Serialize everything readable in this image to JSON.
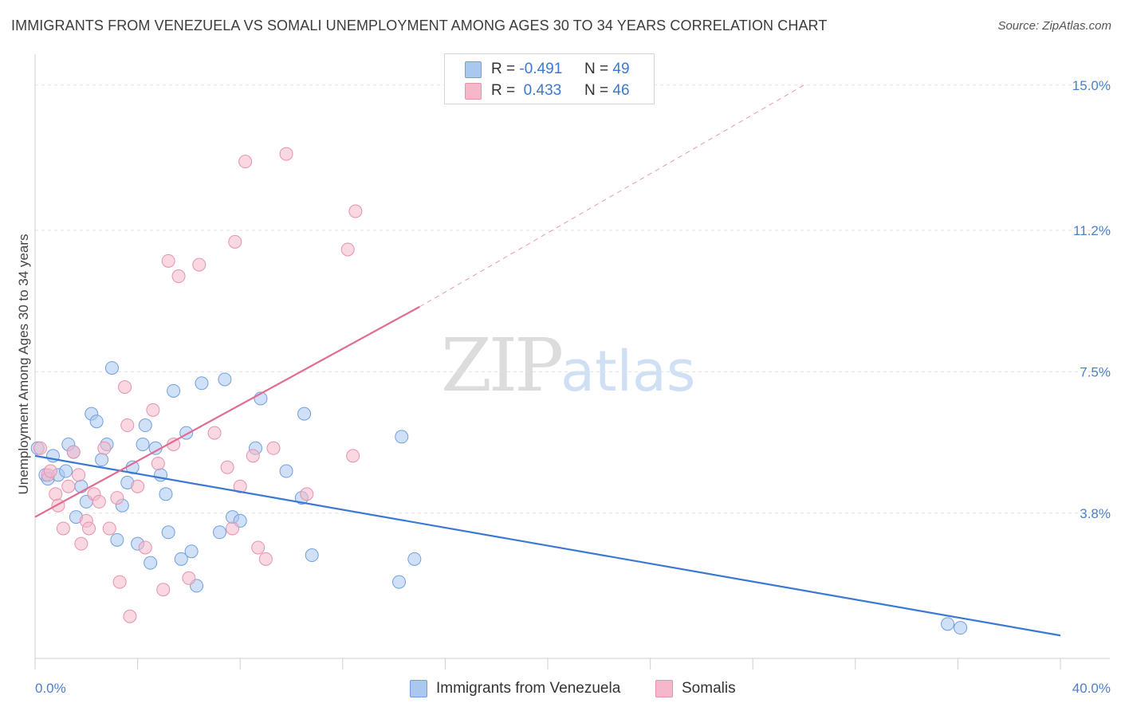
{
  "title": "IMMIGRANTS FROM VENEZUELA VS SOMALI UNEMPLOYMENT AMONG AGES 30 TO 34 YEARS CORRELATION CHART",
  "source": "Source: ZipAtlas.com",
  "watermark": {
    "zip": "ZIP",
    "atlas": "atlas"
  },
  "legend": {
    "rows": [
      {
        "r_label": "R =",
        "r_value": "-0.491",
        "n_label": "N =",
        "n_value": "49",
        "color": "#a9c8f0"
      },
      {
        "r_label": "R =",
        "r_value": " 0.433",
        "n_label": "N =",
        "n_value": "46",
        "color": "#f5b8cb"
      }
    ]
  },
  "bottom_legend": [
    {
      "label": "Immigrants from Venezuela",
      "color": "#a9c8f0"
    },
    {
      "label": "Somalis",
      "color": "#f5b8cb"
    }
  ],
  "chart_data": {
    "type": "scatter",
    "title": "IMMIGRANTS FROM VENEZUELA VS SOMALI UNEMPLOYMENT AMONG AGES 30 TO 34 YEARS CORRELATION CHART",
    "xlabel": "",
    "ylabel": "Unemployment Among Ages 30 to 34 years",
    "xlim": [
      0,
      40
    ],
    "ylim": [
      0,
      15.6
    ],
    "x_tick_labels": [
      "0.0%",
      "40.0%"
    ],
    "y_ticks": [
      3.8,
      7.5,
      11.2,
      15.0
    ],
    "y_tick_labels": [
      "3.8%",
      "7.5%",
      "11.2%",
      "15.0%"
    ],
    "grid": true,
    "legend_placement": "top-center",
    "series": [
      {
        "name": "Immigrants from Venezuela",
        "color": "#a9c8f0",
        "stroke": "#6f9fe0",
        "line_color": "#3a78d2",
        "trend": {
          "x": [
            0,
            40
          ],
          "y": [
            5.3,
            0.6
          ]
        },
        "points": [
          [
            0.1,
            5.5
          ],
          [
            0.4,
            4.8
          ],
          [
            0.5,
            4.7
          ],
          [
            0.7,
            5.3
          ],
          [
            0.9,
            4.8
          ],
          [
            1.2,
            4.9
          ],
          [
            1.3,
            5.6
          ],
          [
            1.5,
            5.4
          ],
          [
            1.6,
            3.7
          ],
          [
            1.8,
            4.5
          ],
          [
            2.0,
            4.1
          ],
          [
            2.2,
            6.4
          ],
          [
            2.4,
            6.2
          ],
          [
            2.6,
            5.2
          ],
          [
            2.8,
            5.6
          ],
          [
            3.0,
            7.6
          ],
          [
            3.2,
            3.1
          ],
          [
            3.4,
            4.0
          ],
          [
            3.6,
            4.6
          ],
          [
            3.8,
            5.0
          ],
          [
            4.0,
            3.0
          ],
          [
            4.2,
            5.6
          ],
          [
            4.3,
            6.1
          ],
          [
            4.5,
            2.5
          ],
          [
            4.7,
            5.5
          ],
          [
            4.9,
            4.8
          ],
          [
            5.1,
            4.3
          ],
          [
            5.2,
            3.3
          ],
          [
            5.4,
            7.0
          ],
          [
            5.7,
            2.6
          ],
          [
            5.9,
            5.9
          ],
          [
            6.1,
            2.8
          ],
          [
            6.3,
            1.9
          ],
          [
            6.5,
            7.2
          ],
          [
            7.2,
            3.3
          ],
          [
            7.4,
            7.3
          ],
          [
            7.7,
            3.7
          ],
          [
            8.0,
            3.6
          ],
          [
            8.6,
            5.5
          ],
          [
            8.8,
            6.8
          ],
          [
            9.8,
            4.9
          ],
          [
            10.4,
            4.2
          ],
          [
            10.5,
            6.4
          ],
          [
            10.8,
            2.7
          ],
          [
            14.2,
            2.0
          ],
          [
            14.3,
            5.8
          ],
          [
            14.8,
            2.6
          ],
          [
            35.6,
            0.9
          ],
          [
            36.1,
            0.8
          ]
        ]
      },
      {
        "name": "Somalis",
        "color": "#f5b8cb",
        "stroke": "#e791ad",
        "line_color": "#e06b93",
        "trend": {
          "x": [
            0,
            15.0
          ],
          "y": [
            3.7,
            9.2
          ]
        },
        "trend_dashed": {
          "x": [
            15.0,
            30.0
          ],
          "y": [
            9.2,
            15.0
          ]
        },
        "points": [
          [
            0.2,
            5.5
          ],
          [
            0.5,
            4.8
          ],
          [
            0.6,
            4.9
          ],
          [
            0.8,
            4.3
          ],
          [
            0.9,
            4.0
          ],
          [
            1.1,
            3.4
          ],
          [
            1.3,
            4.5
          ],
          [
            1.5,
            5.4
          ],
          [
            1.7,
            4.8
          ],
          [
            1.8,
            3.0
          ],
          [
            2.0,
            3.6
          ],
          [
            2.1,
            3.4
          ],
          [
            2.3,
            4.3
          ],
          [
            2.5,
            4.1
          ],
          [
            2.7,
            5.5
          ],
          [
            2.9,
            3.4
          ],
          [
            3.2,
            4.2
          ],
          [
            3.3,
            2.0
          ],
          [
            3.5,
            7.1
          ],
          [
            3.6,
            6.1
          ],
          [
            3.7,
            1.1
          ],
          [
            4.0,
            4.5
          ],
          [
            4.3,
            2.9
          ],
          [
            4.6,
            6.5
          ],
          [
            4.8,
            5.1
          ],
          [
            5.0,
            1.8
          ],
          [
            5.2,
            10.4
          ],
          [
            5.4,
            5.6
          ],
          [
            5.6,
            10.0
          ],
          [
            6.0,
            2.1
          ],
          [
            6.4,
            10.3
          ],
          [
            7.0,
            5.9
          ],
          [
            7.5,
            5.0
          ],
          [
            7.7,
            3.4
          ],
          [
            7.8,
            10.9
          ],
          [
            8.0,
            4.5
          ],
          [
            8.2,
            13.0
          ],
          [
            8.5,
            5.3
          ],
          [
            8.7,
            2.9
          ],
          [
            9.0,
            2.6
          ],
          [
            9.3,
            5.5
          ],
          [
            9.8,
            13.2
          ],
          [
            10.6,
            4.3
          ],
          [
            12.2,
            10.7
          ],
          [
            12.4,
            5.3
          ],
          [
            12.5,
            11.7
          ]
        ]
      }
    ]
  }
}
